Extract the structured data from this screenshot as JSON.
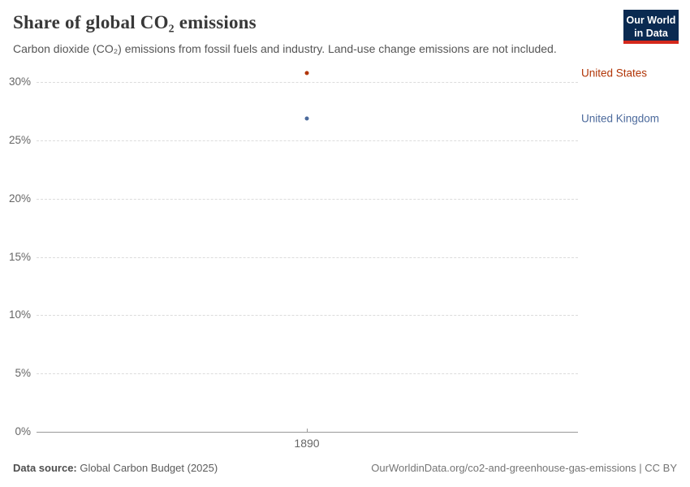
{
  "header": {
    "title": "Share of global CO₂ emissions",
    "subtitle": "Carbon dioxide (CO₂) emissions from fossil fuels and industry. Land-use change emissions are not included.",
    "logo": {
      "line1": "Our World",
      "line2": "in Data",
      "bg_color": "#0a2a51",
      "accent_color": "#d4281c"
    }
  },
  "chart_data": {
    "type": "scatter",
    "x": [
      1890
    ],
    "x_tick_labels": [
      "1890"
    ],
    "series": [
      {
        "name": "United States",
        "color": "#B13507",
        "values": [
          30.8
        ]
      },
      {
        "name": "United Kingdom",
        "color": "#4C6A9C",
        "values": [
          26.9
        ]
      }
    ],
    "title": "Share of global CO₂ emissions",
    "xlabel": "",
    "ylabel": "",
    "ylim": [
      0,
      31
    ],
    "yticks": [
      0,
      5,
      10,
      15,
      20,
      25,
      30
    ],
    "ytick_suffix": "%",
    "grid": "horizontal-dashed",
    "legend_position": "right-of-plot, labels colored by series"
  },
  "footer": {
    "source_label": "Data source:",
    "source_value": " Global Carbon Budget (2025)",
    "citation": "OurWorldinData.org/co2-and-greenhouse-gas-emissions | CC BY"
  }
}
